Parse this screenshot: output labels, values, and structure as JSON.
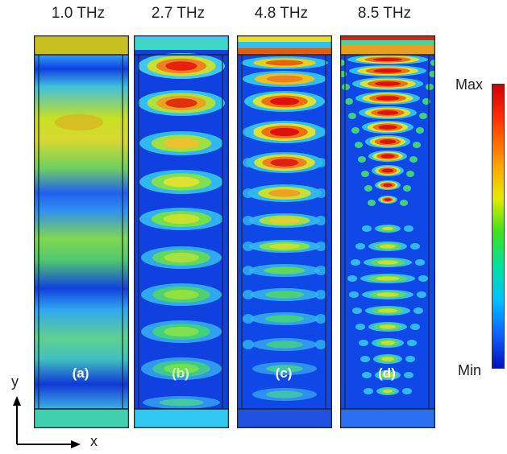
{
  "panels": [
    {
      "frequency": "1.0 THz",
      "label": "(a)",
      "label_color": "#ffffff"
    },
    {
      "frequency": "2.7 THz",
      "label": "(b)",
      "label_color": "#d8f0c0"
    },
    {
      "frequency": "4.8 THz",
      "label": "(c)",
      "label_color": "#ffffff"
    },
    {
      "frequency": "8.5 THz",
      "label": "(d)",
      "label_color": "#ffffff"
    }
  ],
  "colorbar": {
    "max_label": "Max",
    "min_label": "Min"
  },
  "axes": {
    "y_label": "y",
    "x_label": "x"
  }
}
